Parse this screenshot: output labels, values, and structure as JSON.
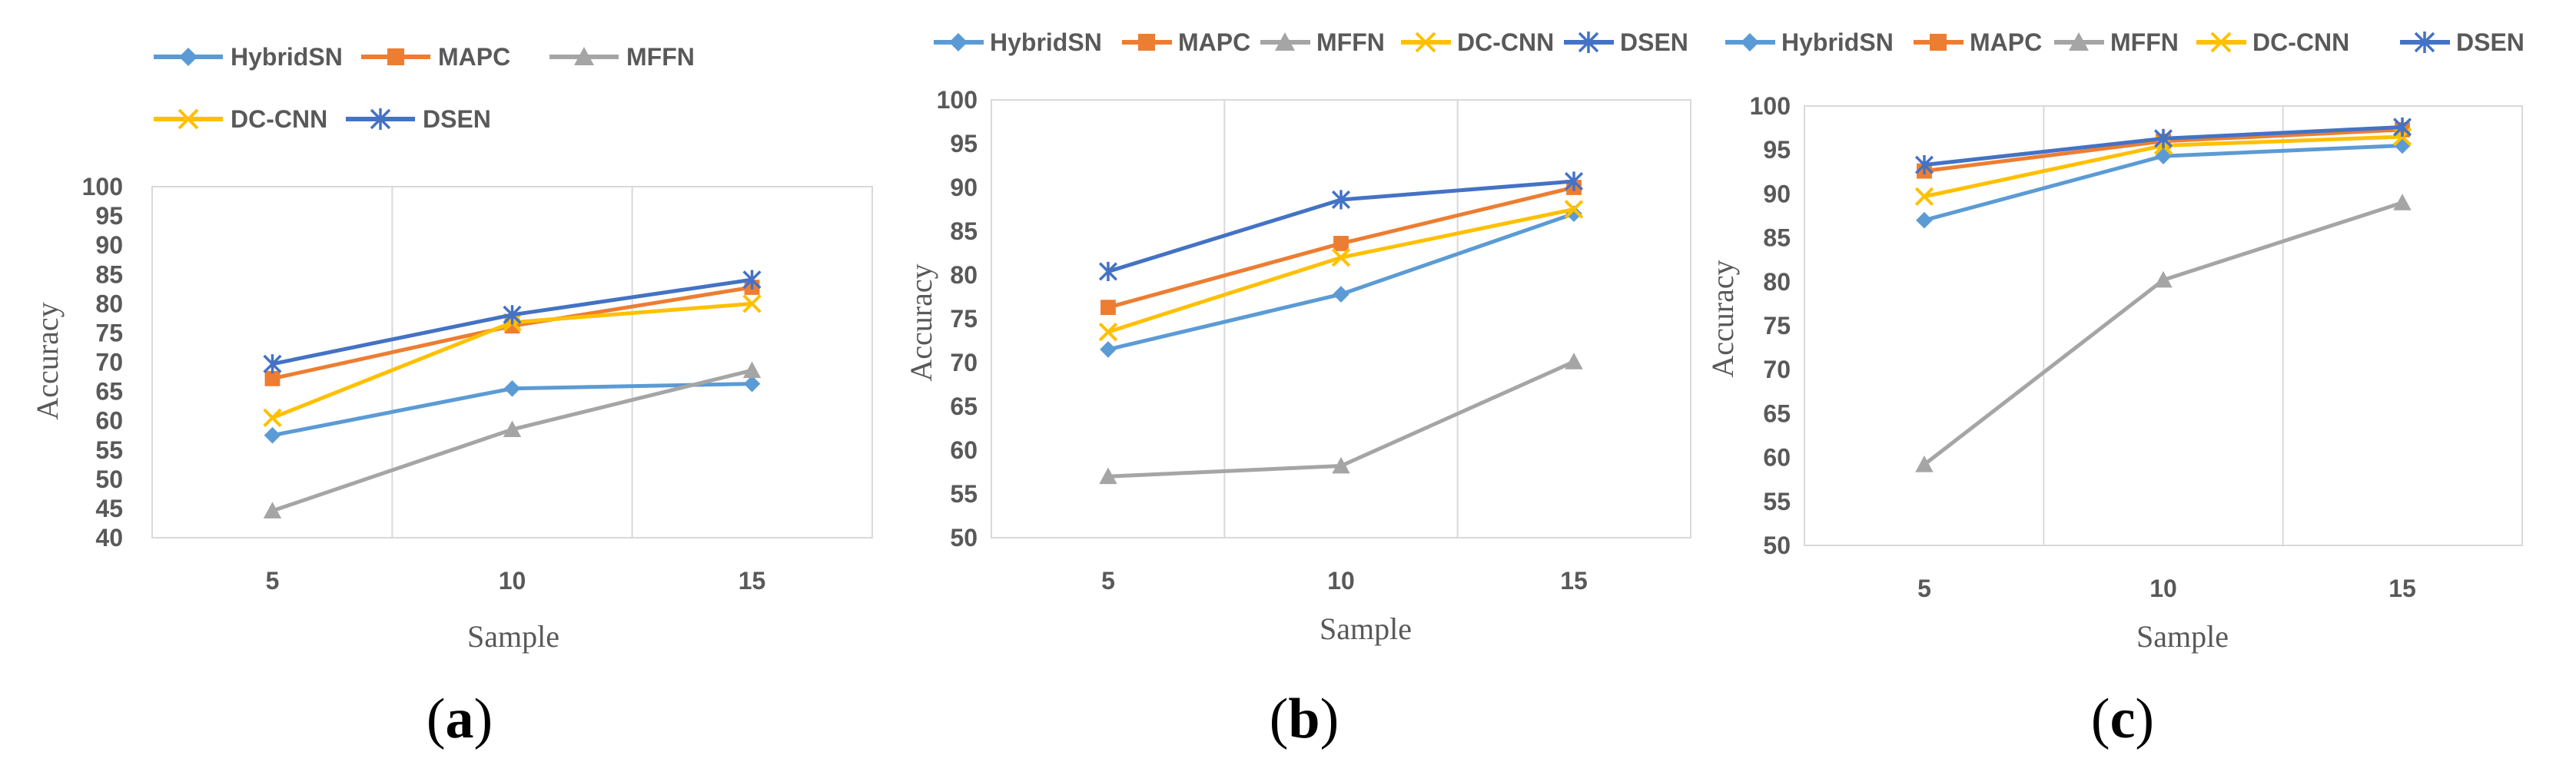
{
  "colors": {
    "HybridSN": "#5B9BD5",
    "MAPC": "#ED7D31",
    "MFFN": "#A5A5A5",
    "DC-CNN": "#FFC000",
    "DSEN": "#4472C4"
  },
  "markers": {
    "HybridSN": "diamond-icon",
    "MAPC": "square-icon",
    "MFFN": "triangle-icon",
    "DC-CNN": "x-icon",
    "DSEN": "asterisk-icon"
  },
  "chart_data": [
    {
      "type": "line",
      "panel_label": "a",
      "xlabel": "Sample",
      "ylabel": "Accuracy",
      "categories": [
        "5",
        "10",
        "15"
      ],
      "ylim": [
        40,
        100
      ],
      "ytick_step": 5,
      "yticks": [
        "40",
        "45",
        "50",
        "55",
        "60",
        "65",
        "70",
        "75",
        "80",
        "85",
        "90",
        "95",
        "100"
      ],
      "legend_position": "top, two rows",
      "series": [
        {
          "name": "HybridSN",
          "values": [
            57.5,
            65.5,
            66.3
          ]
        },
        {
          "name": "MAPC",
          "values": [
            67.2,
            76.2,
            82.8
          ]
        },
        {
          "name": "MFFN",
          "values": [
            44.6,
            58.5,
            68.6
          ]
        },
        {
          "name": "DC-CNN",
          "values": [
            60.5,
            76.8,
            80.0
          ]
        },
        {
          "name": "DSEN",
          "values": [
            69.7,
            78.1,
            84.1
          ]
        }
      ]
    },
    {
      "type": "line",
      "panel_label": "b",
      "xlabel": "Sample",
      "ylabel": "Accuracy",
      "categories": [
        "5",
        "10",
        "15"
      ],
      "ylim": [
        50,
        100
      ],
      "ytick_step": 5,
      "yticks": [
        "50",
        "55",
        "60",
        "65",
        "70",
        "75",
        "80",
        "85",
        "90",
        "95",
        "100"
      ],
      "legend_position": "top",
      "series": [
        {
          "name": "HybridSN",
          "values": [
            71.5,
            77.8,
            87.0
          ]
        },
        {
          "name": "MAPC",
          "values": [
            76.3,
            83.6,
            90.0
          ]
        },
        {
          "name": "MFFN",
          "values": [
            57.0,
            58.2,
            70.1
          ]
        },
        {
          "name": "DC-CNN",
          "values": [
            73.5,
            82.0,
            87.5
          ]
        },
        {
          "name": "DSEN",
          "values": [
            80.4,
            88.6,
            90.7
          ]
        }
      ]
    },
    {
      "type": "line",
      "panel_label": "c",
      "xlabel": "Sample",
      "ylabel": "Accuracy",
      "categories": [
        "5",
        "10",
        "15"
      ],
      "ylim": [
        50,
        100
      ],
      "ytick_step": 5,
      "yticks": [
        "50",
        "55",
        "60",
        "65",
        "70",
        "75",
        "80",
        "85",
        "90",
        "95",
        "100"
      ],
      "legend_position": "top",
      "series": [
        {
          "name": "HybridSN",
          "values": [
            87.0,
            94.3,
            95.5
          ]
        },
        {
          "name": "MAPC",
          "values": [
            92.6,
            96.0,
            97.3
          ]
        },
        {
          "name": "MFFN",
          "values": [
            59.2,
            80.2,
            89.0
          ]
        },
        {
          "name": "DC-CNN",
          "values": [
            89.7,
            95.5,
            96.5
          ]
        },
        {
          "name": "DSEN",
          "values": [
            93.3,
            96.3,
            97.6
          ]
        }
      ]
    }
  ]
}
